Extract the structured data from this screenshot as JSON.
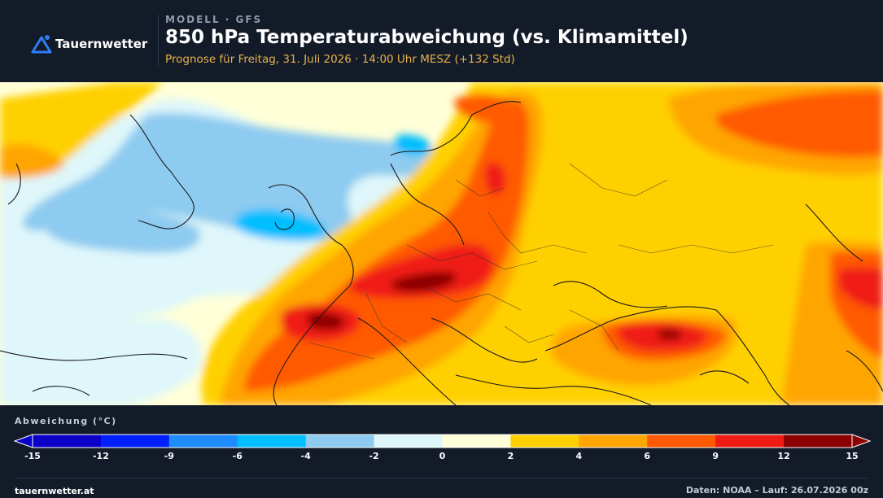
{
  "brand": {
    "name": "Tauernwetter"
  },
  "header": {
    "kicker": "MODELL · GFS",
    "title": "850 hPa Temperaturabweichung (vs. Klimamittel)",
    "subtitle": "Prognose für Freitag, 31. Juli 2026 · 14:00 Uhr MESZ  (+132 Std)"
  },
  "legend": {
    "title": "Abweichung (°C)",
    "ticks": [
      "-15",
      "-12",
      "-9",
      "-6",
      "-4",
      "-2",
      "0",
      "2",
      "4",
      "6",
      "9",
      "12",
      "15"
    ],
    "colors": [
      "#0a00c8",
      "#0020ff",
      "#1e8cff",
      "#00beff",
      "#8ecbf0",
      "#dff7fa",
      "#ffffd8",
      "#ffd000",
      "#ffa500",
      "#ff5a00",
      "#f01c14",
      "#8c0000"
    ]
  },
  "footer": {
    "site": "tauernwetter.at",
    "source": "Daten: NOAA – Lauf: 26.07.2026 00z"
  },
  "colors": {
    "background": "#131b29",
    "accent": "#e8b24a",
    "logo": "#2f7df6"
  }
}
